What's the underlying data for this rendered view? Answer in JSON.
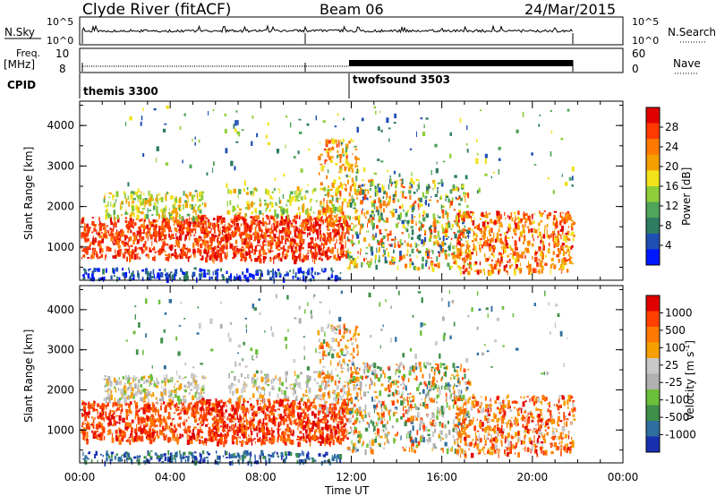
{
  "header": {
    "station": "Clyde River (fitACF)",
    "beam": "Beam 06",
    "date": "24/Mar/2015"
  },
  "top_panels": {
    "nsky_label": "N.Sky",
    "nsearch_label": "N.Search",
    "freq_label": "Freq.",
    "freq_unit": "[MHz]",
    "nave_label": "Nave",
    "cpid_label": "CPID",
    "nsky_ticks": [
      "10^5",
      "10^0"
    ],
    "nsearch_ticks": [
      "10^5",
      "10^0"
    ],
    "freq_ticks": [
      "10",
      "8"
    ],
    "nave_ticks": [
      "60",
      "0"
    ],
    "cpid_modes": [
      "themis 3300",
      "twofsound 3503"
    ]
  },
  "colorbars": {
    "power_label": "Power [dB]",
    "power_colors": [
      "#0018ff",
      "#1f4fb4",
      "#2f7d62",
      "#4fa55a",
      "#8fce3a",
      "#f1e21a",
      "#f5a000",
      "#ff7a00",
      "#ff3a00",
      "#e00000"
    ],
    "velocity_label": "Velocity [m s",
    "velocity_label_sup": "-1",
    "velocity_label_end": "]",
    "velocity_colors": [
      "#e00000",
      "#ff4000",
      "#ff7a00",
      "#f5a000",
      "#c8c8c8",
      "#b0b0b0",
      "#6bbf3a",
      "#3f8f4a",
      "#2f6fa0",
      "#1830b0"
    ]
  },
  "chart_data": [
    {
      "type": "heatmap",
      "title": "",
      "xlabel": "",
      "ylabel": "Slant Range [km]",
      "colorbar_label": "Power [dB]",
      "colorbar_ticks": [
        "28",
        "24",
        "20",
        "16",
        "12",
        "8",
        "4"
      ],
      "y_ticks": [
        "4000",
        "3000",
        "2000",
        "1000"
      ],
      "x_ticks": [
        "00:00",
        "04:00",
        "08:00",
        "12:00",
        "16:00",
        "20:00",
        "00:00"
      ],
      "x_range": [
        "00:00",
        "24:00"
      ],
      "y_range": [
        180,
        4600
      ]
    },
    {
      "type": "heatmap",
      "title": "",
      "xlabel": "Time UT",
      "ylabel": "Slant Range [km]",
      "colorbar_label": "Velocity [m s-1]",
      "colorbar_ticks": [
        "1000",
        "500",
        "100",
        "25",
        "-25",
        "-100",
        "-500",
        "-1000"
      ],
      "y_ticks": [
        "4000",
        "3000",
        "2000",
        "1000"
      ],
      "x_ticks": [
        "00:00",
        "04:00",
        "08:00",
        "12:00",
        "16:00",
        "20:00",
        "00:00"
      ],
      "x_range": [
        "00:00",
        "24:00"
      ],
      "y_range": [
        180,
        4600
      ]
    }
  ]
}
